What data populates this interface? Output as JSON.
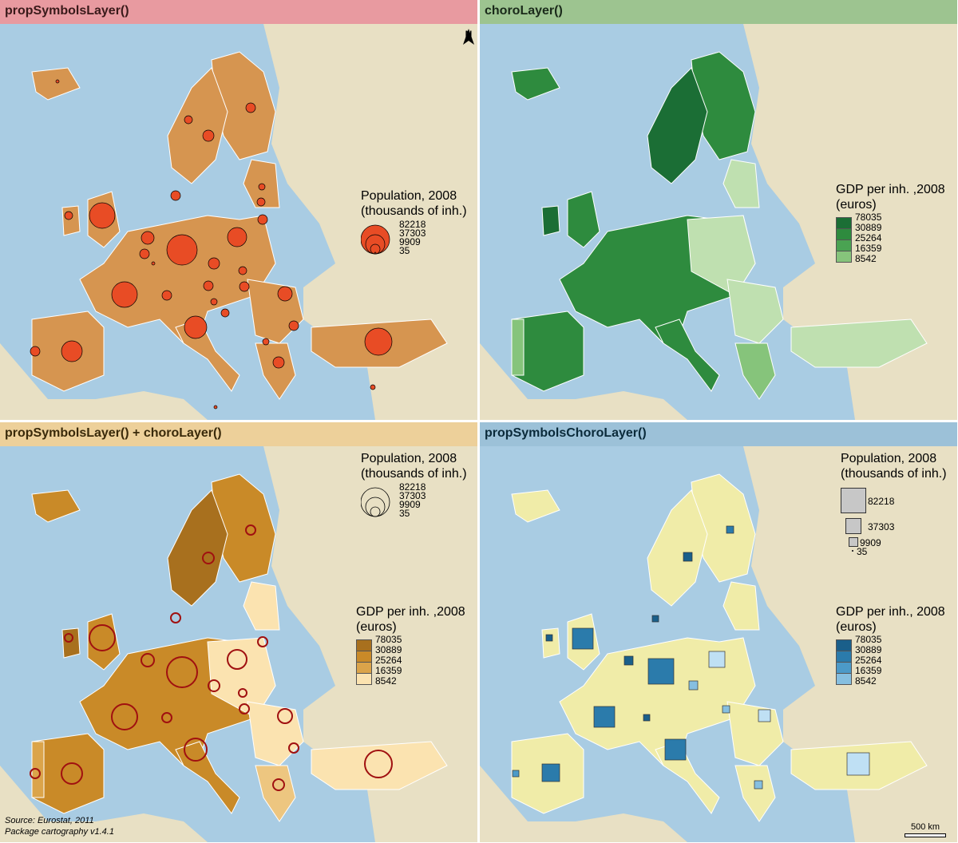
{
  "panels": [
    {
      "title": "propSymbolsLayer()",
      "header_bg": "#e89aa0",
      "header_fg": "#3a1a1a"
    },
    {
      "title": "choroLayer()",
      "header_bg": "#9dc490",
      "header_fg": "#1a2a1a"
    },
    {
      "title": "propSymbolsLayer() + choroLayer()",
      "header_bg": "#edd09a",
      "header_fg": "#3a2a0a"
    },
    {
      "title": "propSymbolsChoroLayer()",
      "header_bg": "#9cc1d8",
      "header_fg": "#0a2a3a"
    }
  ],
  "north_arrow": {
    "label": "N"
  },
  "legend_pop": {
    "title_line1": "Population, 2008",
    "title_line2": "(thousands of inh.)",
    "values": [
      "82218",
      "37303",
      "9909",
      "35"
    ]
  },
  "legend_gdp": {
    "title_line1": "GDP per inh. ,2008",
    "title_line1_alt": "GDP per inh., 2008",
    "title_line2": "(euros)",
    "values": [
      "78035",
      "30889",
      "25264",
      "16359",
      "8542"
    ]
  },
  "colors": {
    "sea": "#a9cce3",
    "land_outside": "#e8e0c4",
    "country_single": "#d69550",
    "symbol_red": "#e84c25",
    "greens": [
      "#1b6e35",
      "#2e8b3e",
      "#4aa352",
      "#86c47b",
      "#bfe0b0"
    ],
    "browns": [
      "#a8701e",
      "#c98a28",
      "#dba44a",
      "#edc680",
      "#fbe3b0"
    ],
    "blues": [
      "#1a5f8a",
      "#2b7bab",
      "#4c9ac8",
      "#86bfe0",
      "#bfe0f4"
    ],
    "yellow": "#f0eca8",
    "grey_symbol": "#c7c7c7"
  },
  "footer": {
    "source": "Source: Eurostat, 2011",
    "package": "Package cartography v1.4.1",
    "scale": "500 km"
  }
}
